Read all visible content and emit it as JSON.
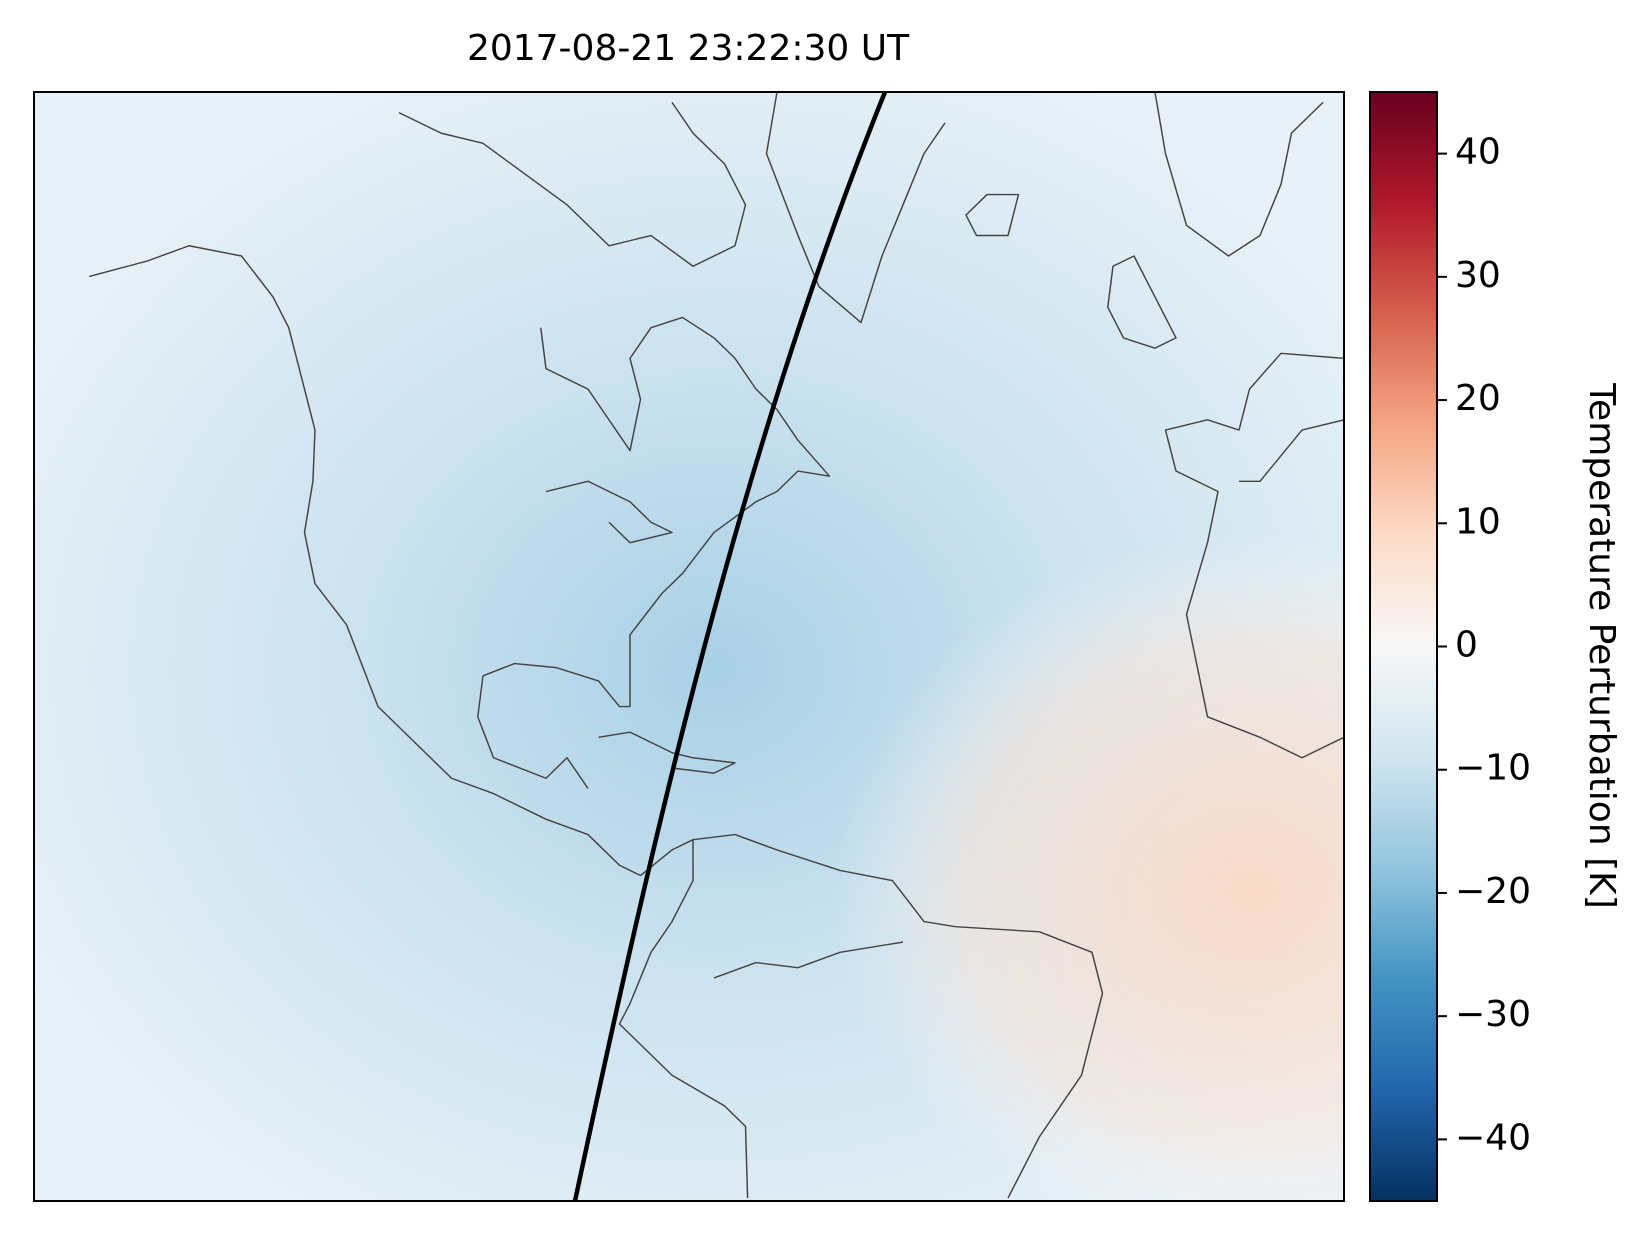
{
  "title": "2017-08-21 23:22:30 UT",
  "colorbar": {
    "label": "Temperature Perturbation [K]",
    "lim": [
      -45,
      45
    ],
    "ticks": [
      {
        "value": -40,
        "label": "−40"
      },
      {
        "value": -30,
        "label": "−30"
      },
      {
        "value": -20,
        "label": "−20"
      },
      {
        "value": -10,
        "label": "−10"
      },
      0,
      10,
      20,
      30,
      40
    ],
    "colormap": [
      "#053061",
      "#2166ac",
      "#4393c3",
      "#92c5de",
      "#d1e5f0",
      "#f7f7f7",
      "#fddbc7",
      "#f4a582",
      "#d6604d",
      "#b2182b",
      "#67001f"
    ]
  }
}
